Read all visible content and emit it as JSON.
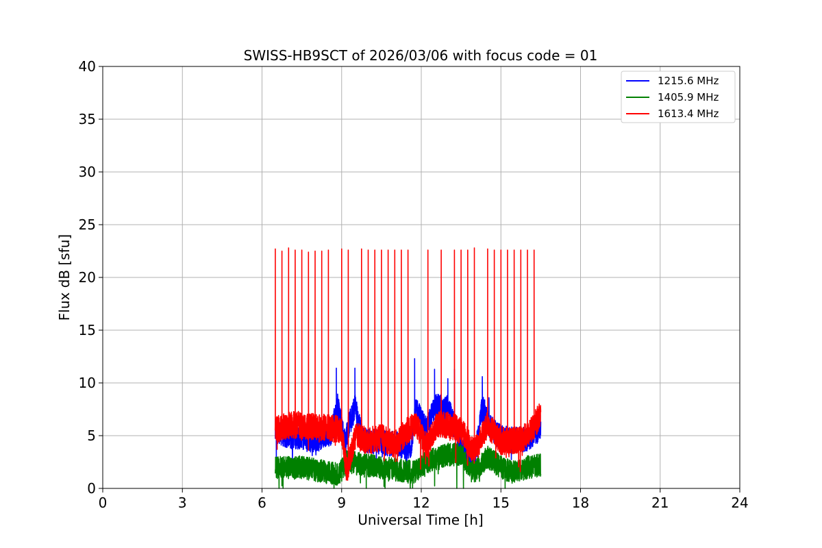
{
  "chart_data": {
    "type": "line",
    "title": "SWISS-HB9SCT of 2026/03/06 with focus code = 01",
    "xlabel": "Universal Time [h]",
    "ylabel": "Flux dB [sfu]",
    "xlim": [
      0,
      24
    ],
    "ylim": [
      0,
      40
    ],
    "xticks": [
      0,
      3,
      6,
      9,
      12,
      15,
      18,
      21,
      24
    ],
    "yticks": [
      0,
      5,
      10,
      15,
      20,
      25,
      30,
      35,
      40
    ],
    "grid": true,
    "legend_position": "top-right",
    "time_range": [
      6.5,
      16.5
    ],
    "series": [
      {
        "name": "1215.6 MHz",
        "color": "#0000ff",
        "baseline": [
          [
            6.5,
            5.5
          ],
          [
            7.0,
            5.0
          ],
          [
            7.5,
            4.8
          ],
          [
            8.0,
            4.5
          ],
          [
            8.6,
            5.2
          ],
          [
            8.85,
            7.8
          ],
          [
            9.1,
            4.5
          ],
          [
            9.5,
            7.8
          ],
          [
            9.8,
            4.6
          ],
          [
            10.5,
            4.3
          ],
          [
            11.2,
            4.2
          ],
          [
            11.6,
            3.8
          ],
          [
            11.8,
            7.5
          ],
          [
            12.2,
            5.5
          ],
          [
            12.5,
            7.8
          ],
          [
            13.0,
            7.7
          ],
          [
            13.5,
            4.0
          ],
          [
            14.0,
            2.5
          ],
          [
            14.3,
            7.8
          ],
          [
            14.6,
            5.8
          ],
          [
            15.0,
            4.8
          ],
          [
            15.5,
            4.6
          ],
          [
            16.0,
            4.7
          ],
          [
            16.3,
            5.3
          ],
          [
            16.5,
            5.8
          ]
        ],
        "noise": 1.2,
        "spikes": [
          [
            8.8,
            11.4
          ],
          [
            9.5,
            11.4
          ],
          [
            11.75,
            12.3
          ],
          [
            12.5,
            11.3
          ],
          [
            13.0,
            10.4
          ],
          [
            13.25,
            11.3
          ],
          [
            14.3,
            10.6
          ],
          [
            14.55,
            8.6
          ]
        ]
      },
      {
        "name": "1405.9 MHz",
        "color": "#008000",
        "baseline": [
          [
            6.5,
            2.0
          ],
          [
            7.5,
            2.0
          ],
          [
            8.5,
            1.5
          ],
          [
            8.9,
            1.3
          ],
          [
            9.2,
            2.5
          ],
          [
            10.0,
            2.2
          ],
          [
            11.0,
            1.8
          ],
          [
            11.7,
            1.5
          ],
          [
            12.2,
            2.5
          ],
          [
            13.0,
            3.2
          ],
          [
            13.5,
            3.2
          ],
          [
            14.0,
            1.5
          ],
          [
            14.5,
            3.0
          ],
          [
            15.0,
            2.0
          ],
          [
            15.5,
            1.5
          ],
          [
            16.0,
            2.0
          ],
          [
            16.5,
            2.2
          ]
        ],
        "noise": 1.1,
        "spikes": []
      },
      {
        "name": "1613.4 MHz",
        "color": "#ff0000",
        "baseline": [
          [
            6.5,
            5.5
          ],
          [
            7.0,
            6.0
          ],
          [
            7.5,
            6.0
          ],
          [
            8.0,
            5.8
          ],
          [
            8.5,
            5.8
          ],
          [
            9.0,
            5.5
          ],
          [
            9.2,
            1.5
          ],
          [
            9.5,
            5.0
          ],
          [
            10.0,
            4.5
          ],
          [
            10.5,
            4.8
          ],
          [
            11.0,
            4.2
          ],
          [
            11.5,
            5.5
          ],
          [
            11.8,
            6.0
          ],
          [
            12.2,
            4.0
          ],
          [
            12.6,
            6.2
          ],
          [
            13.0,
            6.0
          ],
          [
            13.5,
            5.5
          ],
          [
            14.0,
            3.5
          ],
          [
            14.5,
            6.0
          ],
          [
            15.0,
            4.5
          ],
          [
            15.5,
            4.5
          ],
          [
            16.0,
            5.0
          ],
          [
            16.5,
            7.0
          ]
        ],
        "noise": 1.3,
        "spikes": [
          [
            6.5,
            22.7
          ],
          [
            6.75,
            22.5
          ],
          [
            7.0,
            22.8
          ],
          [
            7.25,
            22.6
          ],
          [
            7.5,
            22.6
          ],
          [
            7.75,
            22.4
          ],
          [
            8.0,
            22.5
          ],
          [
            8.25,
            22.5
          ],
          [
            8.5,
            22.6
          ],
          [
            9.0,
            22.7
          ],
          [
            9.25,
            22.6
          ],
          [
            9.75,
            22.7
          ],
          [
            10.0,
            22.6
          ],
          [
            10.25,
            22.6
          ],
          [
            10.5,
            22.6
          ],
          [
            10.75,
            22.6
          ],
          [
            11.0,
            22.6
          ],
          [
            11.25,
            22.6
          ],
          [
            11.5,
            22.6
          ],
          [
            12.25,
            22.6
          ],
          [
            12.75,
            22.6
          ],
          [
            13.25,
            22.6
          ],
          [
            13.5,
            22.6
          ],
          [
            13.75,
            22.6
          ],
          [
            14.0,
            22.8
          ],
          [
            14.5,
            22.7
          ],
          [
            14.75,
            22.6
          ],
          [
            15.0,
            22.6
          ],
          [
            15.25,
            22.6
          ],
          [
            15.5,
            22.6
          ],
          [
            15.75,
            22.6
          ],
          [
            16.0,
            22.6
          ],
          [
            16.25,
            22.6
          ]
        ]
      }
    ]
  }
}
